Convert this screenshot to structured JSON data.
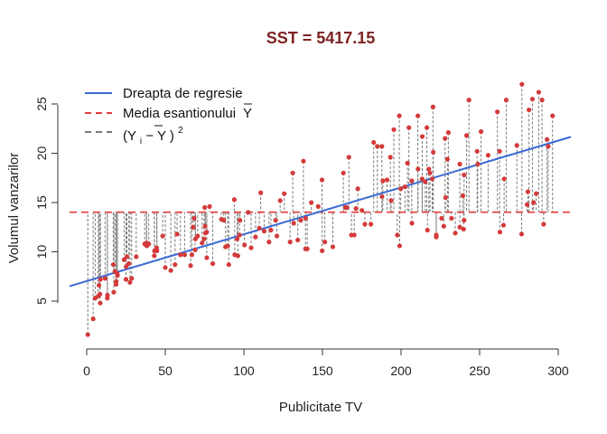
{
  "colors": {
    "points": "#d43a3a",
    "regression": "#3a6bd4",
    "mean": "#e23b3b",
    "residual": "#7a7a7a",
    "title": "#7f2222"
  },
  "chart_data": {
    "type": "scatter",
    "title": "SST = 5417.15",
    "xlabel": "Publicitate TV",
    "ylabel": "Volumul vanzarilor",
    "xlim": [
      0,
      310
    ],
    "ylim": [
      0,
      28
    ],
    "xticks": [
      "0",
      "50",
      "100",
      "150",
      "200",
      "250",
      "300"
    ],
    "yticks": [
      "5",
      "10",
      "15",
      "20",
      "25"
    ],
    "grid": false,
    "legend_position": "top-left",
    "legend": {
      "regression": "Dreapta de regresie",
      "mean": "Media esantionului",
      "mean_symbol": "Y",
      "deviation_open": "(Y",
      "deviation_sub": "i",
      "deviation_mid": "−",
      "deviation_ybar": "Y",
      "deviation_close": ")",
      "deviation_sup": "2"
    },
    "mean_line": {
      "y": 14.02
    },
    "regression_line": {
      "intercept": 7.03,
      "slope": 0.0475
    },
    "points": [
      [
        0.7,
        1.6
      ],
      [
        4.1,
        3.2
      ],
      [
        5.4,
        5.3
      ],
      [
        7.3,
        5.5
      ],
      [
        7.8,
        6.6
      ],
      [
        8.4,
        5.7
      ],
      [
        8.6,
        4.8
      ],
      [
        8.7,
        7.2
      ],
      [
        11.7,
        7.3
      ],
      [
        13.1,
        5.3
      ],
      [
        13.2,
        5.6
      ],
      [
        16.9,
        8.7
      ],
      [
        17.2,
        5.9
      ],
      [
        17.9,
        8.0
      ],
      [
        18.7,
        6.7
      ],
      [
        18.8,
        7.0
      ],
      [
        19.4,
        7.8
      ],
      [
        19.6,
        7.6
      ],
      [
        23.8,
        9.2
      ],
      [
        25.0,
        7.2
      ],
      [
        25.1,
        8.5
      ],
      [
        25.6,
        9.5
      ],
      [
        26.8,
        8.8
      ],
      [
        27.5,
        6.9
      ],
      [
        28.6,
        7.3
      ],
      [
        31.5,
        9.5
      ],
      [
        36.9,
        10.8
      ],
      [
        38.0,
        10.9
      ],
      [
        38.2,
        10.6
      ],
      [
        39.5,
        10.8
      ],
      [
        43.0,
        9.6
      ],
      [
        43.1,
        10.1
      ],
      [
        44.5,
        10.4
      ],
      [
        44.7,
        10.1
      ],
      [
        48.3,
        11.6
      ],
      [
        50.0,
        8.4
      ],
      [
        53.5,
        8.1
      ],
      [
        56.2,
        8.7
      ],
      [
        57.5,
        11.8
      ],
      [
        59.6,
        9.7
      ],
      [
        62.3,
        9.7
      ],
      [
        66.1,
        8.6
      ],
      [
        66.9,
        9.7
      ],
      [
        67.8,
        12.5
      ],
      [
        68.4,
        13.4
      ],
      [
        69.0,
        10.2
      ],
      [
        69.2,
        11.3
      ],
      [
        70.6,
        11.6
      ],
      [
        73.4,
        10.9
      ],
      [
        74.7,
        11.3
      ],
      [
        75.1,
        14.5
      ],
      [
        75.3,
        12.6
      ],
      [
        75.5,
        11.9
      ],
      [
        76.3,
        12.0
      ],
      [
        76.4,
        9.4
      ],
      [
        78.2,
        14.6
      ],
      [
        80.2,
        8.8
      ],
      [
        85.7,
        13.3
      ],
      [
        87.2,
        13.2
      ],
      [
        88.3,
        10.5
      ],
      [
        89.7,
        10.6
      ],
      [
        90.4,
        8.7
      ],
      [
        93.9,
        15.3
      ],
      [
        94.2,
        9.7
      ],
      [
        95.7,
        11.3
      ],
      [
        96.2,
        9.6
      ],
      [
        97.2,
        11.7
      ],
      [
        97.5,
        13.2
      ],
      [
        100.4,
        10.7
      ],
      [
        102.7,
        14.0
      ],
      [
        104.6,
        10.4
      ],
      [
        107.4,
        11.5
      ],
      [
        109.8,
        12.4
      ],
      [
        110.7,
        16.0
      ],
      [
        112.9,
        12.1
      ],
      [
        116.0,
        11.0
      ],
      [
        117.2,
        12.2
      ],
      [
        120.2,
        13.2
      ],
      [
        121.0,
        11.6
      ],
      [
        123.1,
        15.2
      ],
      [
        125.7,
        15.9
      ],
      [
        129.4,
        11.0
      ],
      [
        131.1,
        18.0
      ],
      [
        131.7,
        12.9
      ],
      [
        134.3,
        11.2
      ],
      [
        136.2,
        13.2
      ],
      [
        137.9,
        19.2
      ],
      [
        139.2,
        10.3
      ],
      [
        139.3,
        13.4
      ],
      [
        140.3,
        10.3
      ],
      [
        142.9,
        15.0
      ],
      [
        147.3,
        14.6
      ],
      [
        149.7,
        17.3
      ],
      [
        149.8,
        10.1
      ],
      [
        151.5,
        11.0
      ],
      [
        156.6,
        10.5
      ],
      [
        163.3,
        18.0
      ],
      [
        164.5,
        14.5
      ],
      [
        165.6,
        14.5
      ],
      [
        166.8,
        19.6
      ],
      [
        168.4,
        11.7
      ],
      [
        170.2,
        11.7
      ],
      [
        171.3,
        14.4
      ],
      [
        172.5,
        16.4
      ],
      [
        175.1,
        14.2
      ],
      [
        177.0,
        12.8
      ],
      [
        180.8,
        12.8
      ],
      [
        182.6,
        21.1
      ],
      [
        184.9,
        20.7
      ],
      [
        187.8,
        20.7
      ],
      [
        187.9,
        15.6
      ],
      [
        188.4,
        17.2
      ],
      [
        191.1,
        17.3
      ],
      [
        193.2,
        19.6
      ],
      [
        193.7,
        15.2
      ],
      [
        195.4,
        22.4
      ],
      [
        197.6,
        11.7
      ],
      [
        198.9,
        23.8
      ],
      [
        199.1,
        10.6
      ],
      [
        199.8,
        16.4
      ],
      [
        202.5,
        16.6
      ],
      [
        204.1,
        19.0
      ],
      [
        205.0,
        22.6
      ],
      [
        206.8,
        17.2
      ],
      [
        206.9,
        12.9
      ],
      [
        210.7,
        23.8
      ],
      [
        210.8,
        18.4
      ],
      [
        213.4,
        17.4
      ],
      [
        213.5,
        21.7
      ],
      [
        215.4,
        17.1
      ],
      [
        216.4,
        22.6
      ],
      [
        216.8,
        12.2
      ],
      [
        217.7,
        18.4
      ],
      [
        218.4,
        18.0
      ],
      [
        219.8,
        17.4
      ],
      [
        220.3,
        24.7
      ],
      [
        220.5,
        20.1
      ],
      [
        222.4,
        11.7
      ],
      [
        222.4,
        11.5
      ],
      [
        225.8,
        13.4
      ],
      [
        227.2,
        12.6
      ],
      [
        228.0,
        21.5
      ],
      [
        228.3,
        15.5
      ],
      [
        229.5,
        19.4
      ],
      [
        230.1,
        22.1
      ],
      [
        232.1,
        13.4
      ],
      [
        234.5,
        11.9
      ],
      [
        237.4,
        12.5
      ],
      [
        237.4,
        18.9
      ],
      [
        239.3,
        15.7
      ],
      [
        239.8,
        12.3
      ],
      [
        240.1,
        13.2
      ],
      [
        240.1,
        17.8
      ],
      [
        241.7,
        21.8
      ],
      [
        243.2,
        25.4
      ],
      [
        248.4,
        20.2
      ],
      [
        248.8,
        18.9
      ],
      [
        250.9,
        22.2
      ],
      [
        255.4,
        19.8
      ],
      [
        261.3,
        24.2
      ],
      [
        262.7,
        20.2
      ],
      [
        262.9,
        12.0
      ],
      [
        265.2,
        12.7
      ],
      [
        265.6,
        17.4
      ],
      [
        266.9,
        25.4
      ],
      [
        273.7,
        20.8
      ],
      [
        276.7,
        11.8
      ],
      [
        276.9,
        27.0
      ],
      [
        280.2,
        14.8
      ],
      [
        280.7,
        16.1
      ],
      [
        281.4,
        24.4
      ],
      [
        283.6,
        25.5
      ],
      [
        284.3,
        15.0
      ],
      [
        286.0,
        15.9
      ],
      [
        287.6,
        26.2
      ],
      [
        289.7,
        25.4
      ],
      [
        290.7,
        12.8
      ],
      [
        292.9,
        21.4
      ],
      [
        293.6,
        20.7
      ],
      [
        296.4,
        23.8
      ]
    ]
  }
}
